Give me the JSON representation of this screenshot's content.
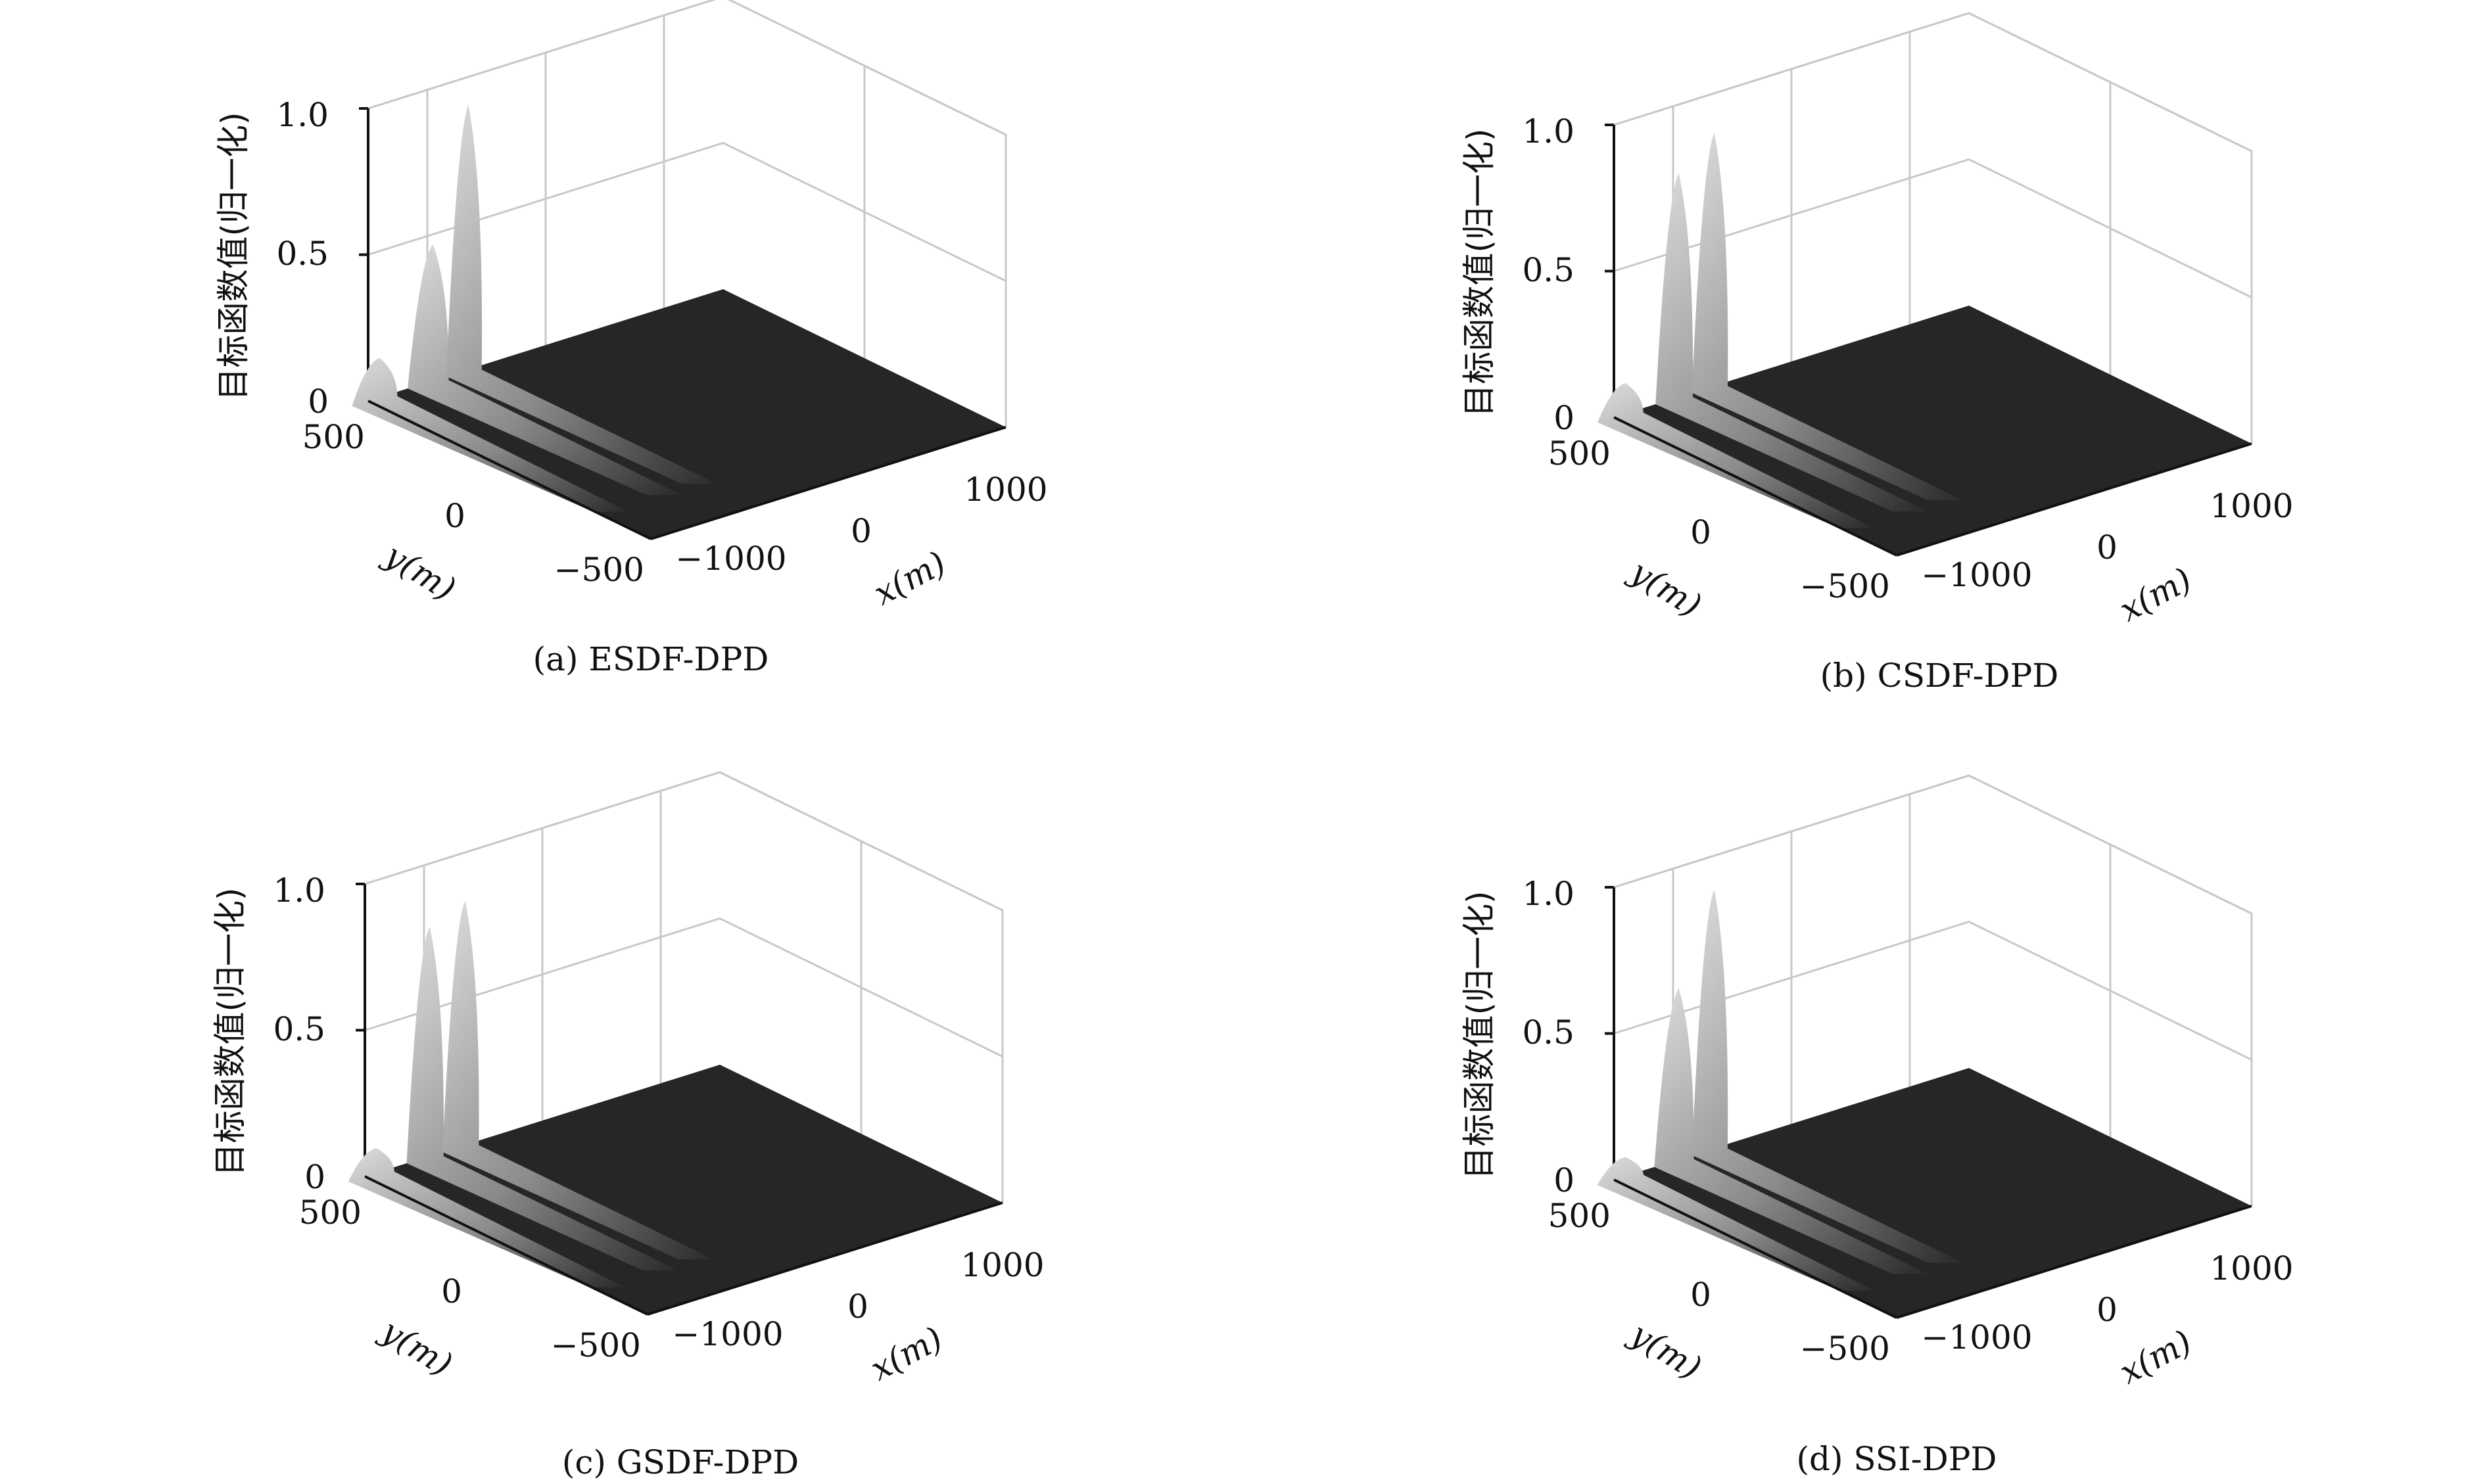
{
  "chart_data": [
    {
      "type": "surface",
      "caption": "(a) ESDF-DPD",
      "zlabel": "目标函数值(归一化)",
      "xlabel": "x(m)",
      "ylabel": "y(m)",
      "xlim": [
        -1500,
        1500
      ],
      "ylim": [
        -500,
        500
      ],
      "zlim": [
        0,
        1.0
      ],
      "xticks": [
        "−1000",
        "0",
        "1000"
      ],
      "yticks": [
        "500",
        "0",
        "−500"
      ],
      "zticks": [
        "0",
        "0.5",
        "1.0"
      ],
      "grid": true,
      "peaks": [
        {
          "x": -1450,
          "y": 0,
          "z": 0.15
        },
        {
          "x": -1000,
          "y": 0,
          "z": 0.48
        },
        {
          "x": -700,
          "y": 0,
          "z": 0.92
        }
      ]
    },
    {
      "type": "surface",
      "caption": "(b) CSDF-DPD",
      "zlabel": "目标函数值(归一化)",
      "xlabel": "x(m)",
      "ylabel": "y(m)",
      "xlim": [
        -1500,
        1500
      ],
      "ylim": [
        -500,
        500
      ],
      "zlim": [
        0,
        1.0
      ],
      "xticks": [
        "−1000",
        "0",
        "1000"
      ],
      "yticks": [
        "500",
        "0",
        "−500"
      ],
      "zticks": [
        "0",
        "0.5",
        "1.0"
      ],
      "grid": true,
      "peaks": [
        {
          "x": -1450,
          "y": 0,
          "z": 0.12
        },
        {
          "x": -1000,
          "y": 0,
          "z": 0.78
        },
        {
          "x": -700,
          "y": 0,
          "z": 0.88
        }
      ]
    },
    {
      "type": "surface",
      "caption": "(c) GSDF-DPD",
      "zlabel": "目标函数值(归一化)",
      "xlabel": "x(m)",
      "ylabel": "y(m)",
      "xlim": [
        -1500,
        1500
      ],
      "ylim": [
        -500,
        500
      ],
      "zlim": [
        0,
        1.0
      ],
      "xticks": [
        "−1000",
        "0",
        "1000"
      ],
      "yticks": [
        "500",
        "0",
        "−500"
      ],
      "zticks": [
        "0",
        "0.5",
        "1.0"
      ],
      "grid": true,
      "peaks": [
        {
          "x": -1450,
          "y": 0,
          "z": 0.1
        },
        {
          "x": -1000,
          "y": 0,
          "z": 0.8
        },
        {
          "x": -700,
          "y": 0,
          "z": 0.85
        }
      ]
    },
    {
      "type": "surface",
      "caption": "(d) SSI-DPD",
      "zlabel": "目标函数值(归一化)",
      "xlabel": "x(m)",
      "ylabel": "y(m)",
      "xlim": [
        -1500,
        1500
      ],
      "ylim": [
        -500,
        500
      ],
      "zlim": [
        0,
        1.0
      ],
      "xticks": [
        "−1000",
        "0",
        "1000"
      ],
      "yticks": [
        "500",
        "0",
        "−500"
      ],
      "zticks": [
        "0",
        "0.5",
        "1.0"
      ],
      "grid": true,
      "peaks": [
        {
          "x": -1450,
          "y": 0,
          "z": 0.08
        },
        {
          "x": -1000,
          "y": 0,
          "z": 0.6
        },
        {
          "x": -700,
          "y": 0,
          "z": 0.9
        }
      ]
    }
  ],
  "colors": {
    "floor": "#262626",
    "peak_light": "#d8d8d8",
    "peak_dark": "#2a2a2a",
    "grid": "#c8c8c8",
    "axis": "#111111"
  }
}
